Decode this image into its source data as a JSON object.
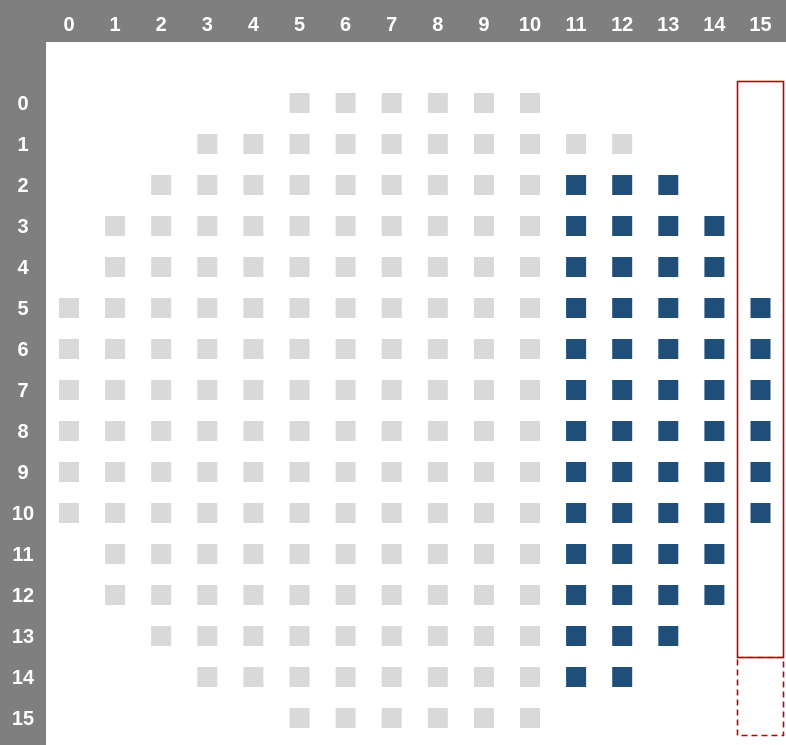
{
  "grid": {
    "column_labels": [
      "0",
      "1",
      "2",
      "3",
      "4",
      "5",
      "6",
      "7",
      "8",
      "9",
      "10",
      "11",
      "12",
      "13",
      "14",
      "15"
    ],
    "row_labels": [
      "0",
      "1",
      "2",
      "3",
      "4",
      "5",
      "6",
      "7",
      "8",
      "9",
      "10",
      "11",
      "12",
      "13",
      "14",
      "15"
    ],
    "rows": [
      "               ",
      "...............",
      "",
      "",
      "",
      "",
      "",
      "",
      "",
      "",
      "",
      "",
      "",
      "",
      "",
      ""
    ],
    "cells_legend": {
      "inactive": "light-gray",
      "active": "dark-blue",
      "empty": "none"
    },
    "cells": [
      [
        "",
        "",
        "",
        "",
        "",
        "g",
        "g",
        "g",
        "g",
        "g",
        "g",
        "",
        "",
        "",
        "",
        ""
      ],
      [
        "",
        "",
        "",
        "g",
        "g",
        "g",
        "g",
        "g",
        "g",
        "g",
        "g",
        "g",
        "g",
        "",
        "",
        ""
      ],
      [
        "",
        "",
        "g",
        "g",
        "g",
        "g",
        "g",
        "g",
        "g",
        "g",
        "g",
        "b",
        "b",
        "b",
        "",
        ""
      ],
      [
        "",
        "g",
        "g",
        "g",
        "g",
        "g",
        "g",
        "g",
        "g",
        "g",
        "g",
        "b",
        "b",
        "b",
        "b",
        ""
      ],
      [
        "",
        "g",
        "g",
        "g",
        "g",
        "g",
        "g",
        "g",
        "g",
        "g",
        "g",
        "b",
        "b",
        "b",
        "b",
        ""
      ],
      [
        "g",
        "g",
        "g",
        "g",
        "g",
        "g",
        "g",
        "g",
        "g",
        "g",
        "g",
        "b",
        "b",
        "b",
        "b",
        "b"
      ],
      [
        "g",
        "g",
        "g",
        "g",
        "g",
        "g",
        "g",
        "g",
        "g",
        "g",
        "g",
        "b",
        "b",
        "b",
        "b",
        "b"
      ],
      [
        "g",
        "g",
        "g",
        "g",
        "g",
        "g",
        "g",
        "g",
        "g",
        "g",
        "g",
        "b",
        "b",
        "b",
        "b",
        "b"
      ],
      [
        "g",
        "g",
        "g",
        "g",
        "g",
        "g",
        "g",
        "g",
        "g",
        "g",
        "g",
        "b",
        "b",
        "b",
        "b",
        "b"
      ],
      [
        "g",
        "g",
        "g",
        "g",
        "g",
        "g",
        "g",
        "g",
        "g",
        "g",
        "g",
        "b",
        "b",
        "b",
        "b",
        "b"
      ],
      [
        "g",
        "g",
        "g",
        "g",
        "g",
        "g",
        "g",
        "g",
        "g",
        "g",
        "g",
        "b",
        "b",
        "b",
        "b",
        "b"
      ],
      [
        "",
        "g",
        "g",
        "g",
        "g",
        "g",
        "g",
        "g",
        "g",
        "g",
        "g",
        "b",
        "b",
        "b",
        "b",
        ""
      ],
      [
        "",
        "g",
        "g",
        "g",
        "g",
        "g",
        "g",
        "g",
        "g",
        "g",
        "g",
        "b",
        "b",
        "b",
        "b",
        ""
      ],
      [
        "",
        "",
        "g",
        "g",
        "g",
        "g",
        "g",
        "g",
        "g",
        "g",
        "g",
        "b",
        "b",
        "b",
        "",
        ""
      ],
      [
        "",
        "",
        "",
        "g",
        "g",
        "g",
        "g",
        "g",
        "g",
        "g",
        "g",
        "b",
        "b",
        "",
        "",
        ""
      ],
      [
        "",
        "",
        "",
        "",
        "",
        "g",
        "g",
        "g",
        "g",
        "g",
        "g",
        "",
        "",
        "",
        "",
        ""
      ]
    ],
    "highlight": {
      "column": "15",
      "solid_rows": [
        "0",
        "13"
      ],
      "dashed_rows": [
        "14",
        "15"
      ]
    },
    "colors": {
      "header_band": "#7f7f7f",
      "header_text": "#ffffff",
      "inactive_cell": "#d9d9d9",
      "active_cell": "#1f4e79",
      "highlight_border": "#c00000",
      "background": "#ffffff"
    }
  }
}
